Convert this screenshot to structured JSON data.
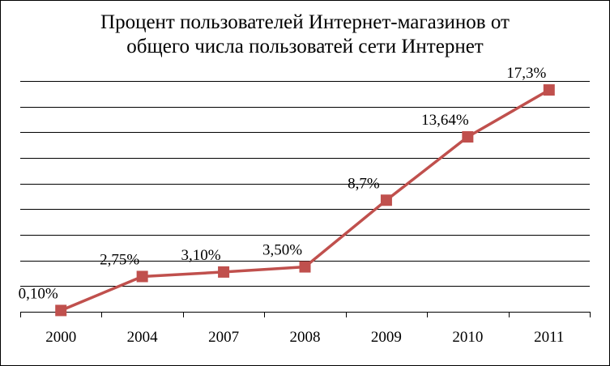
{
  "chart_data": {
    "type": "line",
    "title_lines": [
      "Процент пользователей Интернет-магазинов от",
      "общего числа пользоватей сети Интернет"
    ],
    "categories": [
      "2000",
      "2004",
      "2007",
      "2008",
      "2009",
      "2010",
      "2011"
    ],
    "series": [
      {
        "values": [
          0.1,
          2.75,
          3.1,
          3.5,
          8.7,
          13.64,
          17.3
        ],
        "data_labels": [
          "0,10%",
          "2,75%",
          "3,10%",
          "3,50%",
          "8,7%",
          "13,64%",
          "17,3%"
        ]
      }
    ],
    "ylim": [
      0,
      18
    ],
    "gridlines": true,
    "y_tick_labels_shown": false,
    "legend": "none",
    "colors": {
      "line": "#c0504d",
      "marker": "#c0504d",
      "grid": "#000000"
    }
  }
}
